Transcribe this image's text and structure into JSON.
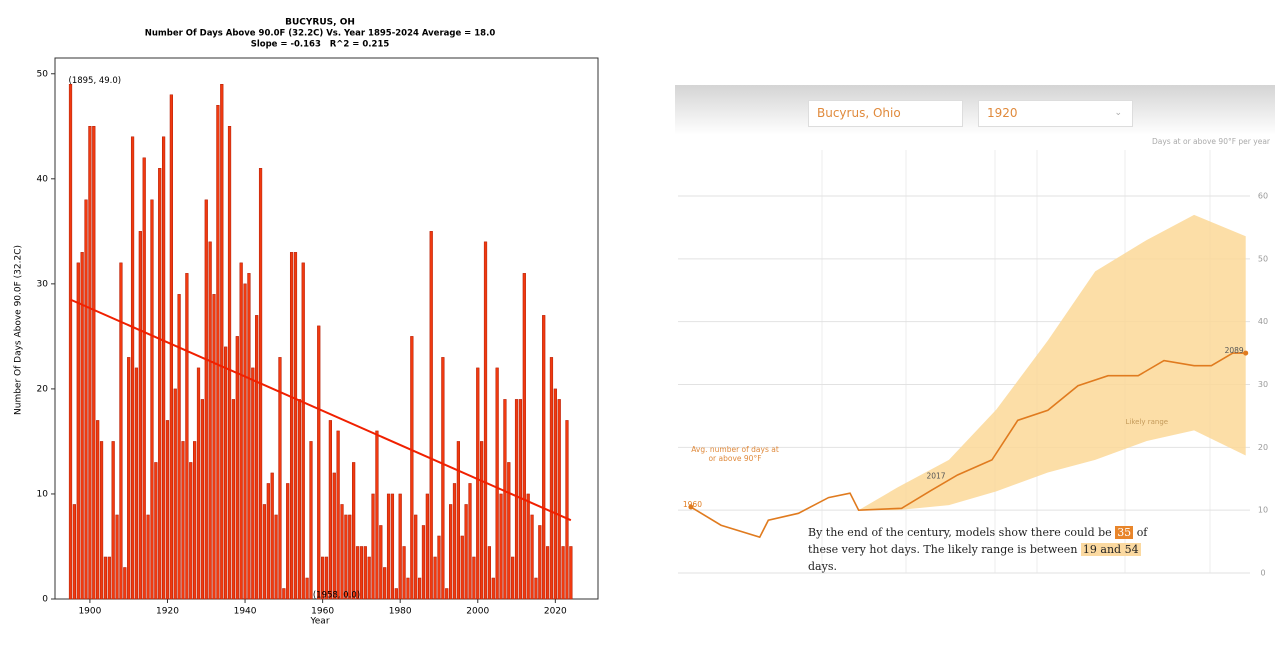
{
  "chart_data": [
    {
      "type": "bar",
      "title": "BUCYRUS, OH",
      "subtitle": [
        "Number Of Days Above 90.0F (32.2C) Vs. Year 1895-2024 Average = 18.0",
        "Slope = -0.163   R^2 = 0.215"
      ],
      "x_label": "Year",
      "y_label": "Number Of Days Above 90.0F (32.2C)",
      "x": [
        1895,
        1896,
        1897,
        1898,
        1899,
        1900,
        1901,
        1902,
        1903,
        1904,
        1905,
        1906,
        1907,
        1908,
        1909,
        1910,
        1911,
        1912,
        1913,
        1914,
        1915,
        1916,
        1917,
        1918,
        1919,
        1920,
        1921,
        1922,
        1923,
        1924,
        1925,
        1926,
        1927,
        1928,
        1929,
        1930,
        1931,
        1932,
        1933,
        1934,
        1935,
        1936,
        1937,
        1938,
        1939,
        1940,
        1941,
        1942,
        1943,
        1944,
        1945,
        1946,
        1947,
        1948,
        1949,
        1950,
        1951,
        1952,
        1953,
        1954,
        1955,
        1956,
        1957,
        1958,
        1959,
        1960,
        1961,
        1962,
        1963,
        1964,
        1965,
        1966,
        1967,
        1968,
        1969,
        1970,
        1971,
        1972,
        1973,
        1974,
        1975,
        1976,
        1977,
        1978,
        1979,
        1980,
        1981,
        1982,
        1983,
        1984,
        1985,
        1986,
        1987,
        1988,
        1989,
        1990,
        1991,
        1992,
        1993,
        1994,
        1995,
        1996,
        1997,
        1998,
        1999,
        2000,
        2001,
        2002,
        2003,
        2004,
        2005,
        2006,
        2007,
        2008,
        2009,
        2010,
        2011,
        2012,
        2013,
        2014,
        2015,
        2016,
        2017,
        2018,
        2019,
        2020,
        2021,
        2022,
        2023,
        2024
      ],
      "values": [
        49,
        9,
        32,
        33,
        38,
        45,
        45,
        17,
        15,
        4,
        4,
        15,
        8,
        32,
        3,
        23,
        44,
        22,
        35,
        42,
        8,
        38,
        13,
        41,
        44,
        17,
        48,
        20,
        29,
        15,
        31,
        13,
        15,
        22,
        19,
        38,
        34,
        29,
        47,
        49,
        24,
        45,
        19,
        25,
        32,
        30,
        31,
        22,
        27,
        41,
        9,
        11,
        12,
        8,
        23,
        1,
        11,
        33,
        33,
        19,
        32,
        2,
        15,
        0,
        26,
        4,
        4,
        17,
        12,
        16,
        9,
        8,
        8,
        13,
        5,
        5,
        5,
        4,
        10,
        16,
        7,
        3,
        10,
        10,
        1,
        10,
        5,
        2,
        25,
        8,
        2,
        7,
        10,
        35,
        4,
        6,
        23,
        1,
        9,
        11,
        15,
        6,
        9,
        11,
        4,
        22,
        15,
        34,
        5,
        2,
        22,
        10,
        19,
        13,
        4,
        19,
        19,
        31,
        10,
        8,
        2,
        7,
        27,
        5,
        23,
        20,
        19,
        5,
        17,
        5
      ],
      "color": "#f03a10",
      "edge_color": "#b01800",
      "trendline": {
        "x": [
          1895,
          2024
        ],
        "values": [
          28.5,
          7.5
        ],
        "color": "#f02000"
      },
      "annotations": [
        {
          "text": "(1895, 49.0)",
          "x": 1895,
          "y": 49
        },
        {
          "text": "(1958, 0.0)",
          "x": 1958,
          "y": 0
        }
      ],
      "xlim": [
        1891,
        2031
      ],
      "xticks": [
        1900,
        1920,
        1940,
        1960,
        1980,
        2000,
        2020
      ],
      "ylim": [
        0,
        51.5
      ],
      "yticks": [
        0,
        10,
        20,
        30,
        40,
        50
      ]
    },
    {
      "type": "line",
      "controls": {
        "location": "Bucyrus, Ohio",
        "year": "1920"
      },
      "y_label": "Days at or above 90°F per year",
      "x": [
        1960,
        1967,
        1976,
        1978,
        1985,
        1992,
        1997,
        1999,
        2009,
        2016,
        2017,
        2022,
        2030,
        2036,
        2043,
        2050,
        2057,
        2064,
        2070,
        2077,
        2081,
        2086,
        2089
      ],
      "series": [
        {
          "name": "Avg. number of days at or above 90°F",
          "color": "#e07b1f",
          "values": [
            10.5,
            7.6,
            5.7,
            8.4,
            9.5,
            12,
            12.7,
            10,
            10.3,
            13.2,
            13.6,
            15.6,
            18,
            24.3,
            25.9,
            29.8,
            31.4,
            31.4,
            33.8,
            33,
            33,
            35,
            35
          ]
        }
      ],
      "band": {
        "name": "Likely range",
        "color": "#fcd898",
        "x": [
          1999,
          2008,
          2020,
          2031,
          2043,
          2054,
          2066,
          2077,
          2089
        ],
        "lower": [
          10,
          10,
          10.8,
          13,
          16,
          18,
          21,
          22.7,
          18.7
        ],
        "upper": [
          10,
          13.6,
          18,
          26,
          37,
          48,
          53,
          57,
          53.6
        ]
      },
      "labeled_years": [
        1960,
        2017,
        2089
      ],
      "caption": {
        "before": "By the end of the century, models show there could be",
        "value": 35,
        "middle": "of these very hot days. The likely range is between",
        "range": "19 and 54",
        "after": "days."
      },
      "xlim": [
        1957,
        2090
      ],
      "ylim": [
        0,
        67
      ],
      "yticks": [
        0,
        10,
        20,
        30,
        40,
        50,
        60
      ],
      "grid": true
    }
  ]
}
